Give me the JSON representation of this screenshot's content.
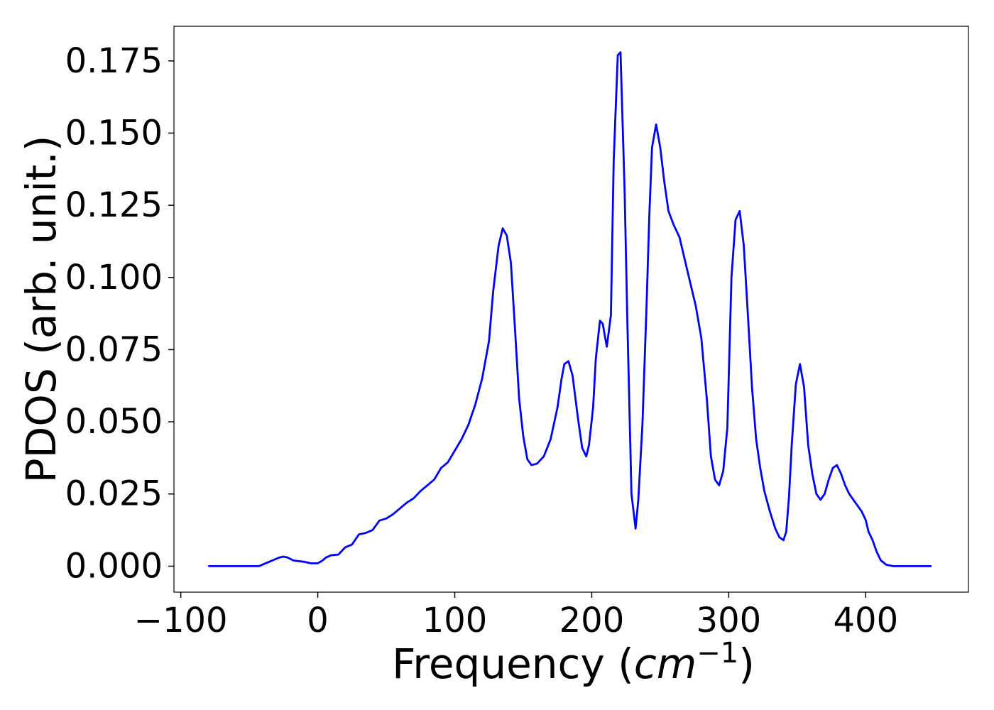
{
  "chart_data": {
    "type": "line",
    "title": "",
    "xlabel": "Frequency (cm⁻¹)",
    "xlabel_parts": {
      "prefix": "Frequency (",
      "unit_base": "cm",
      "unit_exponent": "−1",
      "suffix": ")"
    },
    "ylabel": "PDOS (arb. unit.)",
    "xlim": [
      -105,
      475
    ],
    "ylim": [
      -0.009,
      0.187
    ],
    "xticks": [
      -100,
      0,
      100,
      200,
      300,
      400
    ],
    "xtick_labels": [
      "−100",
      "0",
      "100",
      "200",
      "300",
      "400"
    ],
    "yticks": [
      0.0,
      0.025,
      0.05,
      0.075,
      0.1,
      0.125,
      0.15,
      0.175
    ],
    "ytick_labels": [
      "0.000",
      "0.025",
      "0.050",
      "0.075",
      "0.100",
      "0.125",
      "0.150",
      "0.175"
    ],
    "grid": false,
    "legend": "none",
    "color": "#0000ff",
    "series": [
      {
        "x": [
          -80,
          -70,
          -60,
          -50,
          -43,
          -38,
          -33,
          -28,
          -25,
          -22,
          -18,
          -15,
          -10,
          -5,
          0,
          3,
          6,
          10,
          15,
          20,
          25,
          30,
          35,
          40,
          45,
          50,
          55,
          60,
          65,
          70,
          75,
          80,
          85,
          90,
          95,
          100,
          105,
          110,
          115,
          120,
          125,
          128,
          132,
          135,
          138,
          141,
          144,
          147,
          150,
          153,
          156,
          160,
          165,
          170,
          175,
          178,
          180,
          183,
          186,
          190,
          193,
          196,
          198,
          201,
          203,
          206,
          208,
          211,
          214,
          216,
          219,
          221,
          224,
          226,
          229,
          232,
          234,
          237,
          240,
          242,
          244,
          247,
          250,
          253,
          256,
          260,
          264,
          268,
          272,
          276,
          280,
          284,
          287,
          290,
          293,
          296,
          299,
          302,
          305,
          308,
          311,
          314,
          317,
          320,
          323,
          326,
          330,
          334,
          337,
          340,
          342,
          344,
          346,
          349,
          352,
          355,
          358,
          361,
          364,
          367,
          370,
          373,
          376,
          379,
          382,
          385,
          388,
          391,
          394,
          397,
          400,
          402,
          405,
          408,
          411,
          415,
          420,
          430,
          440,
          448
        ],
        "y": [
          0.0,
          0.0,
          0.0,
          0.0,
          0.0,
          0.001,
          0.002,
          0.003,
          0.0033,
          0.003,
          0.002,
          0.0018,
          0.0015,
          0.001,
          0.001,
          0.0018,
          0.003,
          0.0038,
          0.004,
          0.0065,
          0.0075,
          0.011,
          0.0115,
          0.0125,
          0.0158,
          0.0165,
          0.018,
          0.02,
          0.022,
          0.0235,
          0.026,
          0.028,
          0.03,
          0.034,
          0.036,
          0.04,
          0.044,
          0.049,
          0.056,
          0.065,
          0.078,
          0.095,
          0.111,
          0.117,
          0.1145,
          0.105,
          0.082,
          0.058,
          0.045,
          0.037,
          0.035,
          0.0355,
          0.038,
          0.044,
          0.055,
          0.065,
          0.07,
          0.071,
          0.066,
          0.051,
          0.041,
          0.038,
          0.042,
          0.055,
          0.072,
          0.085,
          0.084,
          0.076,
          0.087,
          0.14,
          0.177,
          0.178,
          0.13,
          0.085,
          0.025,
          0.013,
          0.023,
          0.049,
          0.09,
          0.121,
          0.145,
          0.153,
          0.145,
          0.133,
          0.123,
          0.118,
          0.114,
          0.106,
          0.098,
          0.09,
          0.079,
          0.058,
          0.038,
          0.03,
          0.028,
          0.033,
          0.048,
          0.1,
          0.12,
          0.123,
          0.111,
          0.087,
          0.062,
          0.044,
          0.034,
          0.026,
          0.019,
          0.013,
          0.01,
          0.009,
          0.012,
          0.024,
          0.042,
          0.063,
          0.07,
          0.062,
          0.042,
          0.032,
          0.025,
          0.023,
          0.025,
          0.03,
          0.034,
          0.035,
          0.032,
          0.028,
          0.025,
          0.023,
          0.021,
          0.019,
          0.016,
          0.012,
          0.009,
          0.005,
          0.002,
          0.0005,
          0.0,
          0.0,
          0.0,
          0.0
        ]
      }
    ]
  }
}
